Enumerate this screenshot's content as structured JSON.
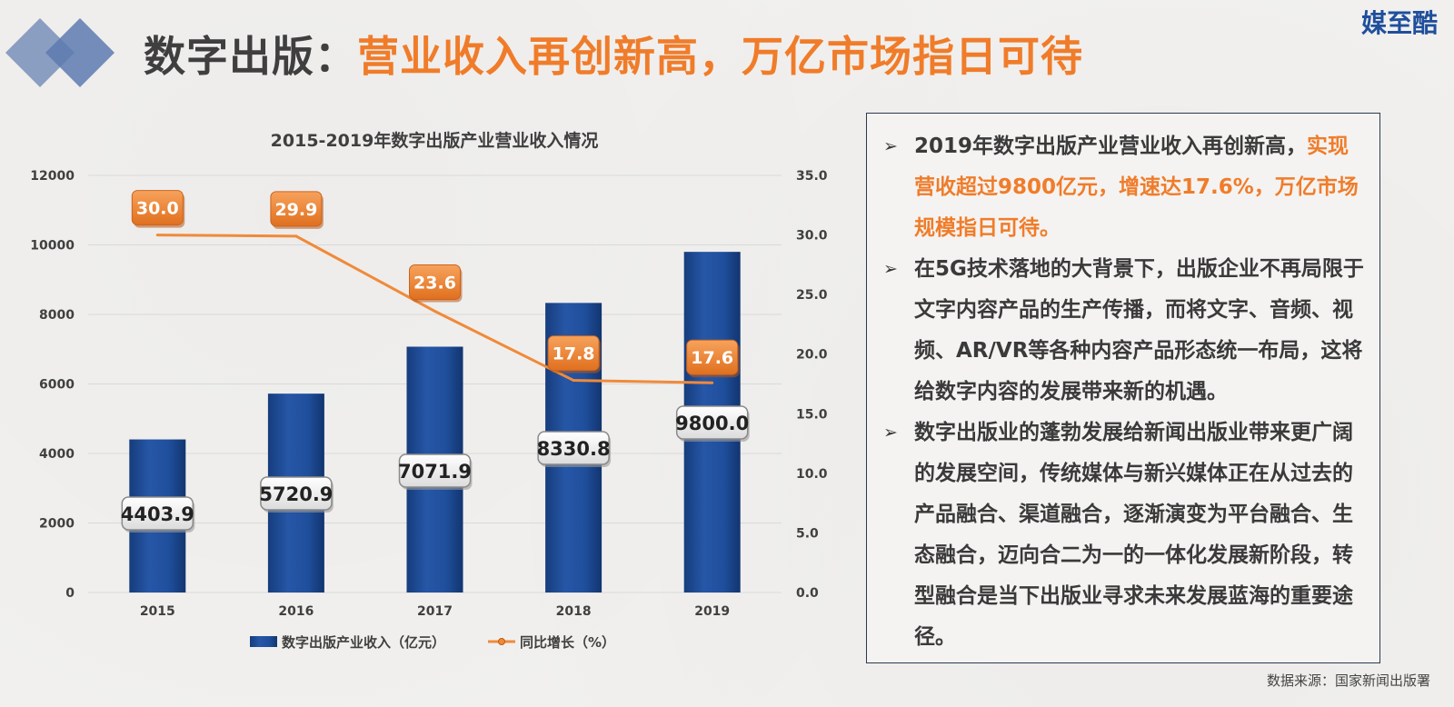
{
  "header": {
    "title_main": "数字出版：",
    "title_accent": "营业收入再创新高，万亿市场指日可待",
    "brand": "媒至酷"
  },
  "colors": {
    "bar": "#1f4f9c",
    "line": "#f08a3a",
    "accent": "#f07c2a",
    "text": "#3a3a3a"
  },
  "chart_data": {
    "type": "bar",
    "title": "2015-2019年数字出版产业营业收入情况",
    "categories": [
      "2015",
      "2016",
      "2017",
      "2018",
      "2019"
    ],
    "series": [
      {
        "name": "数字出版产业收入（亿元）",
        "type": "bar",
        "axis": "left",
        "values": [
          4403.9,
          5720.9,
          7071.9,
          8330.8,
          9800.0
        ],
        "labels": [
          "4403.9",
          "5720.9",
          "7071.9",
          "8330.8",
          "9800.0"
        ]
      },
      {
        "name": "同比增长（%）",
        "type": "line",
        "axis": "right",
        "values": [
          30.0,
          29.9,
          23.6,
          17.8,
          17.6
        ],
        "labels": [
          "30.0",
          "29.9",
          "23.6",
          "17.8",
          "17.6"
        ]
      }
    ],
    "y_left": {
      "min": 0,
      "max": 12000,
      "ticks": [
        0,
        2000,
        4000,
        6000,
        8000,
        10000,
        12000
      ],
      "tick_labels": [
        "0",
        "2000",
        "4000",
        "6000",
        "8000",
        "10000",
        "12000"
      ]
    },
    "y_right": {
      "min": 0,
      "max": 35,
      "ticks": [
        0,
        5,
        10,
        15,
        20,
        25,
        30,
        35
      ],
      "tick_labels": [
        "0.0",
        "5.0",
        "10.0",
        "15.0",
        "20.0",
        "25.0",
        "30.0",
        "35.0"
      ]
    },
    "grid": true,
    "legend_position": "bottom"
  },
  "panel": {
    "bullets": [
      {
        "parts": [
          {
            "text": "2019年数字出版产业营业收入再创新高，",
            "highlight": false
          },
          {
            "text": "实现营收超过9800亿元，增速达17.6%，万亿市场规模指日可待。",
            "highlight": true
          }
        ]
      },
      {
        "parts": [
          {
            "text": "在5G技术落地的大背景下，出版企业不再局限于文字内容产品的生产传播，而将文字、音频、视频、AR/VR等各种内容产品形态统一布局，这将给数字内容的发展带来新的机遇。",
            "highlight": false
          }
        ]
      },
      {
        "parts": [
          {
            "text": "数字出版业的蓬勃发展给新闻出版业带来更广阔的发展空间，传统媒体与新兴媒体正在从过去的产品融合、渠道融合，逐渐演变为平台融合、生态融合，迈向合二为一的一体化发展新阶段，转型融合是当下出版业寻求未来发展蓝海的重要途径。",
            "highlight": false
          }
        ]
      }
    ]
  },
  "footer": {
    "source": "数据来源：国家新闻出版署"
  }
}
